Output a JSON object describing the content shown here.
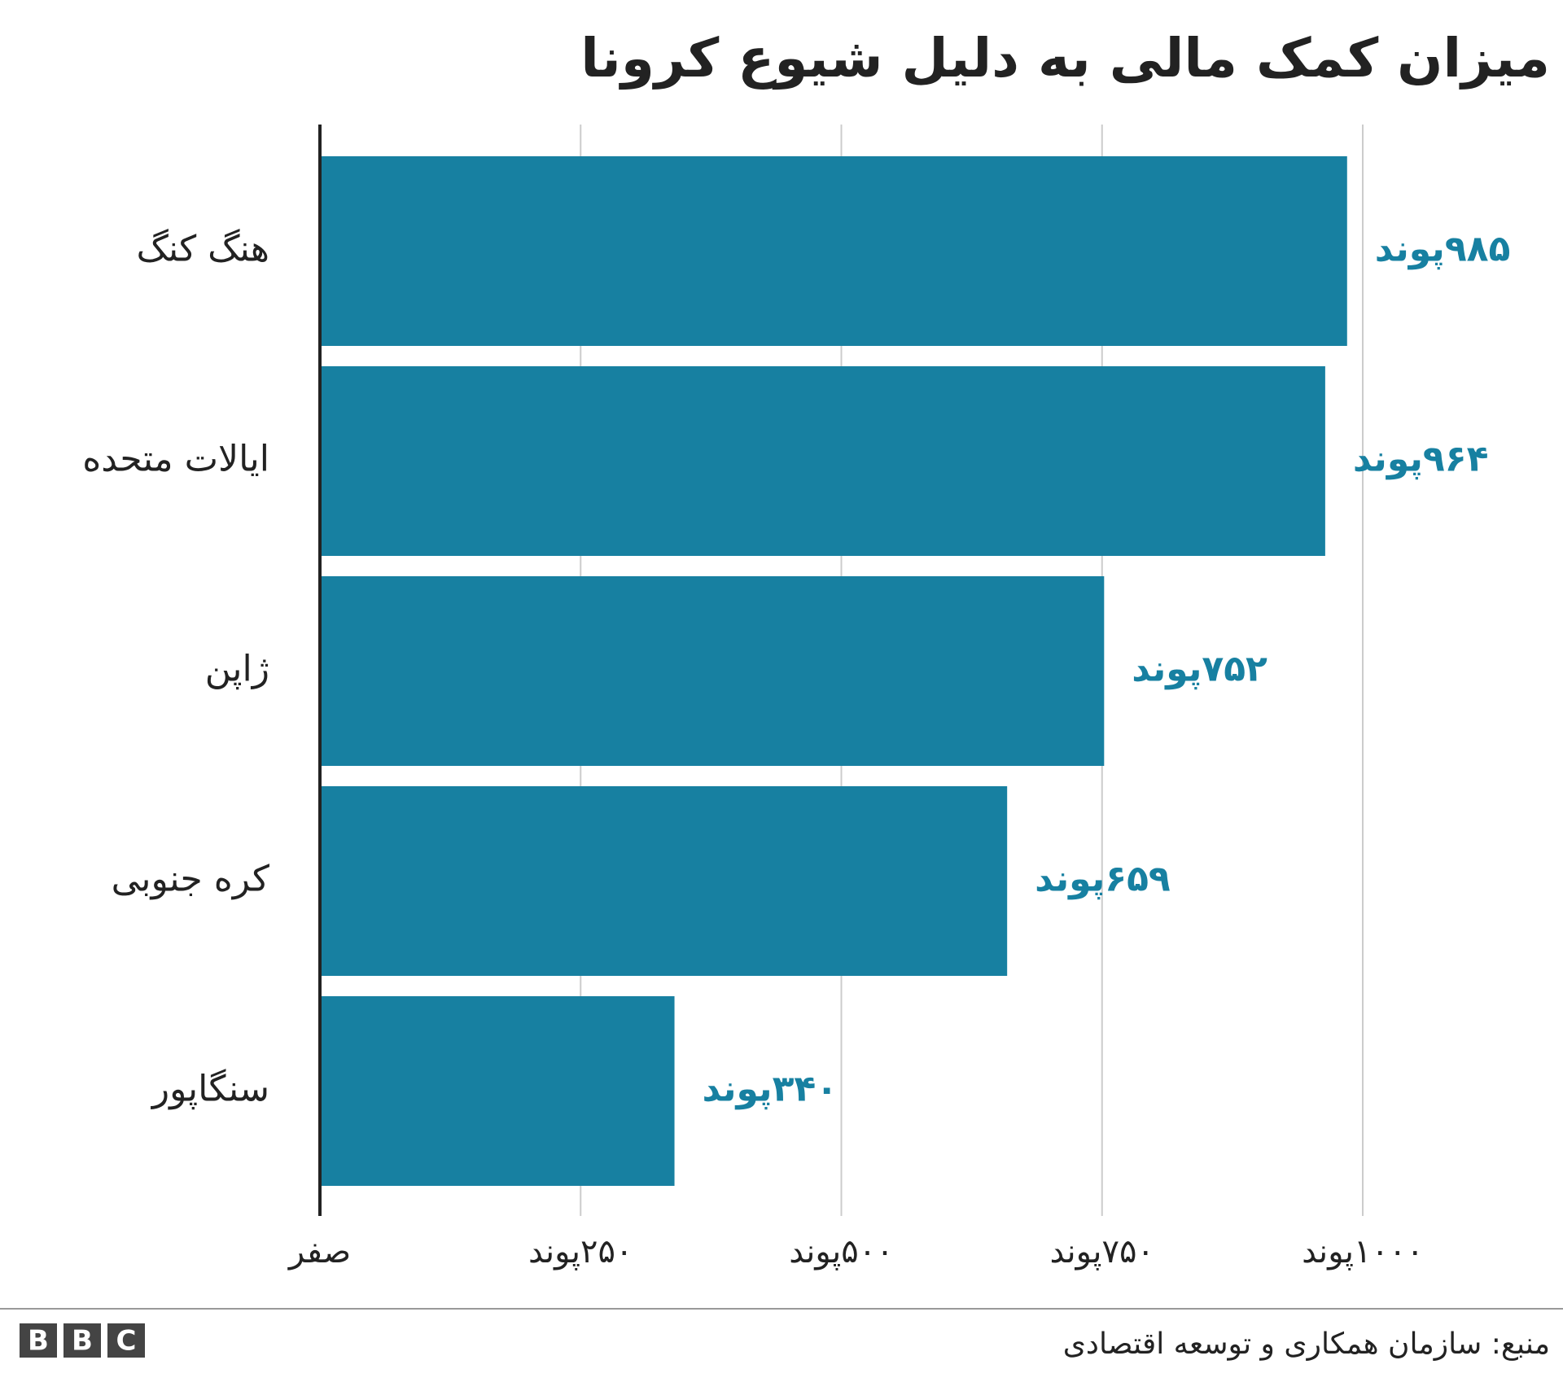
{
  "chart_data": {
    "type": "bar",
    "orientation": "horizontal",
    "title": "میزان کمک مالی به دلیل شیوع کرونا",
    "categories": [
      "هنگ کنگ",
      "ایالات متحده",
      "ژاپن",
      "کره جنوبی",
      "سنگاپور"
    ],
    "values": [
      985,
      964,
      752,
      659,
      340
    ],
    "value_labels": [
      "۹۸۵پوند",
      "۹۶۴پوند",
      "۷۵۲پوند",
      "۶۵۹پوند",
      "۳۴۰پوند"
    ],
    "color": "#1780a1",
    "xlim": [
      0,
      1000
    ],
    "xticks": [
      {
        "value": 0,
        "label": "صفر"
      },
      {
        "value": 250,
        "label": "۲۵۰پوند"
      },
      {
        "value": 500,
        "label": "۵۰۰پوند"
      },
      {
        "value": 750,
        "label": "۷۵۰پوند"
      },
      {
        "value": 1000,
        "label": "۱۰۰۰پوند"
      }
    ],
    "grid": true,
    "source": "منبع: سازمان همکاری و توسعه اقتصادی",
    "logo": [
      "B",
      "B",
      "C"
    ]
  }
}
